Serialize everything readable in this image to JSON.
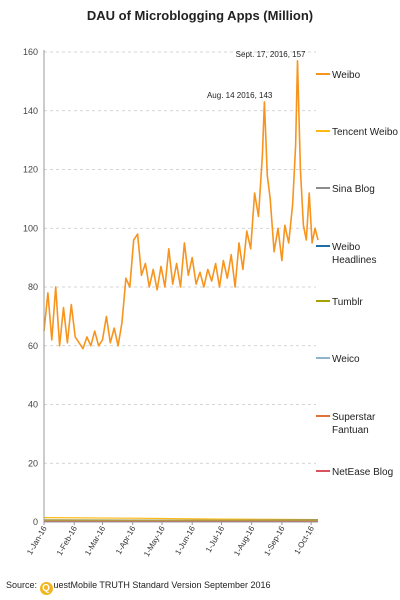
{
  "chart_data": {
    "type": "line",
    "title": "DAU of Microblogging Apps (Million)",
    "xlabel": "",
    "ylabel": "",
    "ylim": [
      0,
      160
    ],
    "yticks": [
      "0",
      "20",
      "40",
      "60",
      "80",
      "100",
      "120",
      "140",
      "160"
    ],
    "x_ticks": [
      "1-Jan-16",
      "1-Feb-16",
      "1-Mar-16",
      "1-Apr-16",
      "1-May-16",
      "1-Jun-16",
      "1-Jul-16",
      "1-Aug-16",
      "1-Sep-16",
      "1-Oct-16"
    ],
    "grid": true,
    "legend_position": "right",
    "series": [
      {
        "name": "Weibo",
        "color": "#f7941d",
        "points": [
          [
            "2016-01-01",
            65
          ],
          [
            "2016-01-05",
            78
          ],
          [
            "2016-01-09",
            62
          ],
          [
            "2016-01-13",
            80
          ],
          [
            "2016-01-17",
            60
          ],
          [
            "2016-01-21",
            73
          ],
          [
            "2016-01-25",
            61
          ],
          [
            "2016-01-29",
            74
          ],
          [
            "2016-02-02",
            63
          ],
          [
            "2016-02-06",
            61
          ],
          [
            "2016-02-10",
            59
          ],
          [
            "2016-02-14",
            63
          ],
          [
            "2016-02-18",
            60
          ],
          [
            "2016-02-22",
            65
          ],
          [
            "2016-02-26",
            60
          ],
          [
            "2016-03-01",
            62
          ],
          [
            "2016-03-05",
            70
          ],
          [
            "2016-03-09",
            61
          ],
          [
            "2016-03-13",
            66
          ],
          [
            "2016-03-17",
            60
          ],
          [
            "2016-03-21",
            68
          ],
          [
            "2016-03-25",
            83
          ],
          [
            "2016-03-29",
            80
          ],
          [
            "2016-04-02",
            96
          ],
          [
            "2016-04-06",
            98
          ],
          [
            "2016-04-10",
            84
          ],
          [
            "2016-04-14",
            88
          ],
          [
            "2016-04-18",
            80
          ],
          [
            "2016-04-22",
            86
          ],
          [
            "2016-04-26",
            79
          ],
          [
            "2016-04-30",
            87
          ],
          [
            "2016-05-04",
            80
          ],
          [
            "2016-05-08",
            93
          ],
          [
            "2016-05-12",
            81
          ],
          [
            "2016-05-16",
            88
          ],
          [
            "2016-05-20",
            80
          ],
          [
            "2016-05-24",
            95
          ],
          [
            "2016-05-28",
            84
          ],
          [
            "2016-06-01",
            90
          ],
          [
            "2016-06-05",
            81
          ],
          [
            "2016-06-09",
            85
          ],
          [
            "2016-06-13",
            80
          ],
          [
            "2016-06-17",
            86
          ],
          [
            "2016-06-21",
            82
          ],
          [
            "2016-06-25",
            88
          ],
          [
            "2016-06-29",
            80
          ],
          [
            "2016-07-03",
            89
          ],
          [
            "2016-07-07",
            83
          ],
          [
            "2016-07-11",
            91
          ],
          [
            "2016-07-15",
            80
          ],
          [
            "2016-07-19",
            95
          ],
          [
            "2016-07-23",
            86
          ],
          [
            "2016-07-27",
            99
          ],
          [
            "2016-07-31",
            93
          ],
          [
            "2016-08-04",
            112
          ],
          [
            "2016-08-08",
            104
          ],
          [
            "2016-08-12",
            125
          ],
          [
            "2016-08-14",
            143
          ],
          [
            "2016-08-17",
            118
          ],
          [
            "2016-08-20",
            110
          ],
          [
            "2016-08-24",
            92
          ],
          [
            "2016-08-28",
            100
          ],
          [
            "2016-09-01",
            89
          ],
          [
            "2016-09-04",
            101
          ],
          [
            "2016-09-08",
            95
          ],
          [
            "2016-09-12",
            108
          ],
          [
            "2016-09-15",
            128
          ],
          [
            "2016-09-17",
            157
          ],
          [
            "2016-09-20",
            120
          ],
          [
            "2016-09-23",
            101
          ],
          [
            "2016-09-26",
            96
          ],
          [
            "2016-09-29",
            112
          ],
          [
            "2016-10-02",
            95
          ],
          [
            "2016-10-05",
            100
          ],
          [
            "2016-10-08",
            96
          ]
        ]
      },
      {
        "name": "Tencent Weibo",
        "color": "#fdb913",
        "points": [
          [
            "2016-01-01",
            1.5
          ],
          [
            "2016-04-01",
            1.3
          ],
          [
            "2016-07-01",
            1.0
          ],
          [
            "2016-10-08",
            0.8
          ]
        ]
      },
      {
        "name": "Sina Blog",
        "color": "#8c8c8c",
        "points": [
          [
            "2016-01-01",
            0.7
          ],
          [
            "2016-10-08",
            0.5
          ]
        ]
      },
      {
        "name": "Weibo Headlines",
        "color": "#1f6fa6",
        "points": [
          [
            "2016-01-01",
            0.2
          ],
          [
            "2016-10-08",
            0.6
          ]
        ]
      },
      {
        "name": "Tumblr",
        "color": "#a8a200",
        "points": [
          [
            "2016-01-01",
            0.6
          ],
          [
            "2016-10-08",
            0.5
          ]
        ]
      },
      {
        "name": "Weico",
        "color": "#8fb4cc",
        "points": [
          [
            "2016-01-01",
            0.3
          ],
          [
            "2016-10-08",
            0.3
          ]
        ]
      },
      {
        "name": "Superstar Fantuan",
        "color": "#e37239",
        "points": [
          [
            "2016-01-01",
            0.2
          ],
          [
            "2016-10-08",
            0.2
          ]
        ]
      },
      {
        "name": "NetEase Blog",
        "color": "#d9535f",
        "points": [
          [
            "2016-01-01",
            0.1
          ],
          [
            "2016-10-08",
            0.1
          ]
        ]
      }
    ],
    "annotations": [
      {
        "text": "Aug. 14 2016, 143",
        "x": "2016-08-14",
        "y": 143
      },
      {
        "text": "Sept. 17, 2016, 157",
        "x": "2016-09-17",
        "y": 157
      }
    ]
  },
  "source": {
    "prefix": "Source:",
    "logo_letter": "Q",
    "text": "uestMobile TRUTH Standard Version September 2016"
  }
}
